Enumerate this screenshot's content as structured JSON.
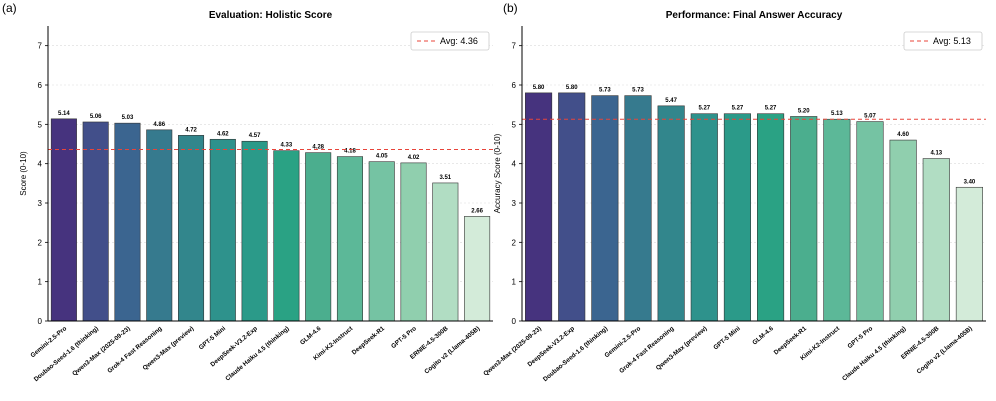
{
  "chart_data": [
    {
      "type": "bar",
      "panel_label": "(a)",
      "title": "Evaluation: Holistic Score",
      "xlabel": "",
      "ylabel": "Score (0-10)",
      "ylim": [
        0,
        7.5
      ],
      "yticks": [
        "0",
        "1",
        "2",
        "3",
        "4",
        "5",
        "6",
        "7"
      ],
      "grid": "horizontal dashed",
      "average": 4.36,
      "legend": {
        "label": "Avg: 4.36",
        "position": "top-right"
      },
      "categories": [
        "Gemini-2.5-Pro",
        "Doubao-Seed-1.6 (thinking)",
        "Qwen3-Max (2025-09-23)",
        "Grok-4 Fast Reasoning",
        "Qwen3-Max (preview)",
        "GPT-5 Mini",
        "DeepSeek-V3.2-Exp",
        "Claude Haiku 4.5 (thinking)",
        "GLM-4.6",
        "Kimi-K2-Instruct",
        "DeepSeek-R1",
        "GPT-5 Pro",
        "ERNIE-4.5-300B",
        "Cogito v2 (Llama-405B)"
      ],
      "values": [
        5.14,
        5.06,
        5.03,
        4.86,
        4.72,
        4.62,
        4.57,
        4.33,
        4.28,
        4.18,
        4.05,
        4.02,
        3.51,
        2.66
      ],
      "value_labels": [
        "5.14",
        "5.06",
        "5.03",
        "4.86",
        "4.72",
        "4.62",
        "4.57",
        "4.33",
        "4.28",
        "4.18",
        "4.05",
        "4.02",
        "3.51",
        "2.66"
      ],
      "colors": [
        "#46337e",
        "#424f8a",
        "#3b6590",
        "#367a8e",
        "#32868c",
        "#2e928c",
        "#2b9a89",
        "#2aa284",
        "#4bae8e",
        "#5cb898",
        "#75c3a3",
        "#90cfae",
        "#b1ddc3",
        "#d3ebd9"
      ]
    },
    {
      "type": "bar",
      "panel_label": "(b)",
      "title": "Performance: Final Answer Accuracy",
      "xlabel": "",
      "ylabel": "Accuracy Score (0-10)",
      "ylim": [
        0,
        7.5
      ],
      "yticks": [
        "0",
        "1",
        "2",
        "3",
        "4",
        "5",
        "6",
        "7"
      ],
      "grid": "horizontal dashed",
      "average": 5.13,
      "legend": {
        "label": "Avg: 5.13",
        "position": "top-right"
      },
      "categories": [
        "Qwen3-Max (2025-09-23)",
        "DeepSeek-V3.2-Exp",
        "Doubao-Seed-1.6 (thinking)",
        "Gemini-2.5-Pro",
        "Grok-4 Fast Reasoning",
        "Qwen3-Max (preview)",
        "GPT-5 Mini",
        "GLM-4.6",
        "DeepSeek-R1",
        "Kimi-K2-Instruct",
        "GPT-5 Pro",
        "Claude Haiku 4.5 (thinking)",
        "ERNIE-4.5-300B",
        "Cogito v2 (Llama-405B)"
      ],
      "values": [
        5.8,
        5.8,
        5.73,
        5.73,
        5.47,
        5.27,
        5.27,
        5.27,
        5.2,
        5.13,
        5.07,
        4.6,
        4.13,
        3.4
      ],
      "value_labels": [
        "5.80",
        "5.80",
        "5.73",
        "5.73",
        "5.47",
        "5.27",
        "5.27",
        "5.27",
        "5.20",
        "5.13",
        "5.07",
        "4.60",
        "4.13",
        "3.40"
      ],
      "colors": [
        "#46337e",
        "#424f8a",
        "#3b6590",
        "#367a8e",
        "#32868c",
        "#2e928c",
        "#2b9a89",
        "#2aa284",
        "#4bae8e",
        "#5cb898",
        "#75c3a3",
        "#90cfae",
        "#b1ddc3",
        "#d3ebd9"
      ]
    }
  ],
  "style": {
    "avg_line_color": "#e8443a",
    "bar_edge_color": "#333333",
    "grid_color": "#d9d9d9"
  }
}
